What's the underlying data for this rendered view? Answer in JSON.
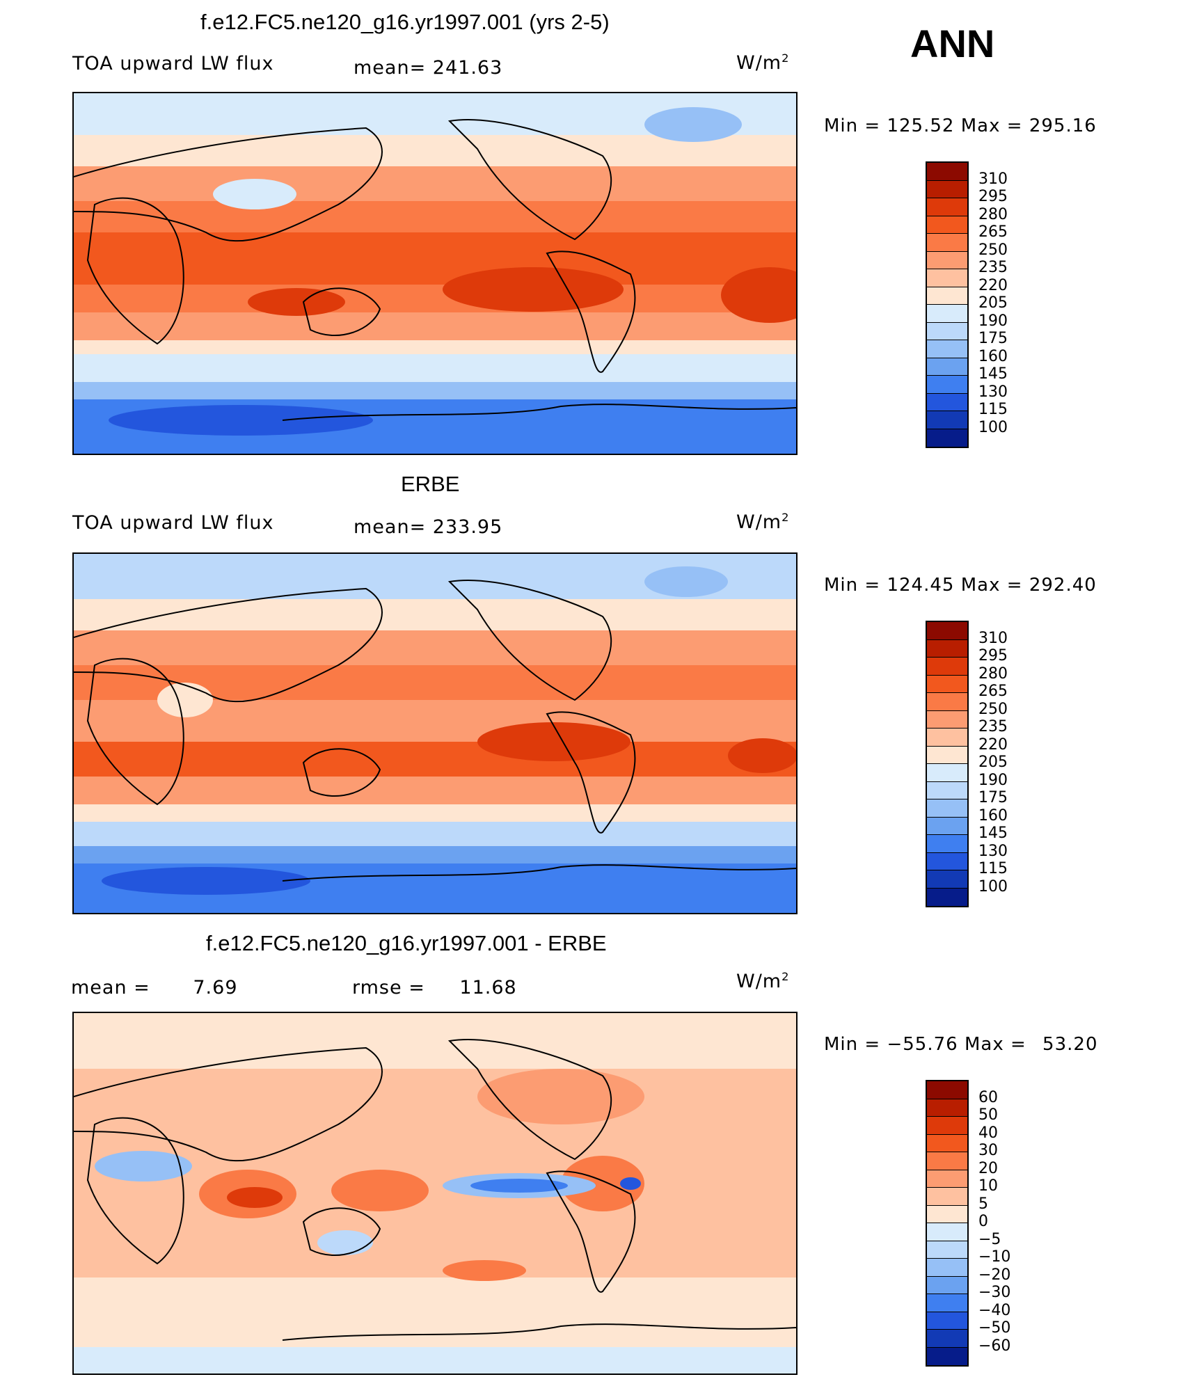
{
  "season": "ANN",
  "units": "W/m",
  "units_sup": "2",
  "chart_data": [
    {
      "type": "heatmap",
      "panel": "model",
      "title": "f.e12.FC5.ne120_g16.yr1997.001 (yrs 2-5)",
      "variable": "TOA upward LW flux",
      "mean_label": "mean=",
      "mean": "241.63",
      "min_label": "Min",
      "min": "125.52",
      "max_label": "Max",
      "max": "295.16",
      "levels": [
        "310",
        "295",
        "280",
        "265",
        "250",
        "235",
        "220",
        "205",
        "190",
        "175",
        "160",
        "145",
        "130",
        "115",
        "100"
      ],
      "colors": [
        "#8c0a00",
        "#b81e00",
        "#de3a0a",
        "#f2581e",
        "#fa7a46",
        "#fc9c72",
        "#fec1a0",
        "#fee6d2",
        "#d8ebfb",
        "#bcd9fa",
        "#96c0f6",
        "#6ba2f0",
        "#3f7ff0",
        "#2356dd",
        "#123ab5",
        "#061c8a"
      ]
    },
    {
      "type": "heatmap",
      "panel": "obs",
      "title": "ERBE",
      "variable": "TOA upward LW flux",
      "mean_label": "mean=",
      "mean": "233.95",
      "min_label": "Min",
      "min": "124.45",
      "max_label": "Max",
      "max": "292.40",
      "levels": [
        "310",
        "295",
        "280",
        "265",
        "250",
        "235",
        "220",
        "205",
        "190",
        "175",
        "160",
        "145",
        "130",
        "115",
        "100"
      ],
      "colors": [
        "#8c0a00",
        "#b81e00",
        "#de3a0a",
        "#f2581e",
        "#fa7a46",
        "#fc9c72",
        "#fec1a0",
        "#fee6d2",
        "#d8ebfb",
        "#bcd9fa",
        "#96c0f6",
        "#6ba2f0",
        "#3f7ff0",
        "#2356dd",
        "#123ab5",
        "#061c8a"
      ]
    },
    {
      "type": "heatmap",
      "panel": "diff",
      "title": "f.e12.FC5.ne120_g16.yr1997.001 - ERBE",
      "mean_label": "mean =",
      "mean": "7.69",
      "rmse_label": "rmse =",
      "rmse": "11.68",
      "min_label": "Min",
      "min": "−55.76",
      "max_label": "Max",
      "max": "53.20",
      "levels": [
        "60",
        "50",
        "40",
        "30",
        "20",
        "10",
        "5",
        "0",
        "−5",
        "−10",
        "−20",
        "−30",
        "−40",
        "−50",
        "−60"
      ],
      "colors": [
        "#8c0a00",
        "#b81e00",
        "#de3a0a",
        "#f2581e",
        "#fa7a46",
        "#fc9c72",
        "#fec1a0",
        "#fee6d2",
        "#d8ebfb",
        "#bcd9fa",
        "#96c0f6",
        "#6ba2f0",
        "#3f7ff0",
        "#2356dd",
        "#123ab5",
        "#061c8a"
      ]
    }
  ]
}
